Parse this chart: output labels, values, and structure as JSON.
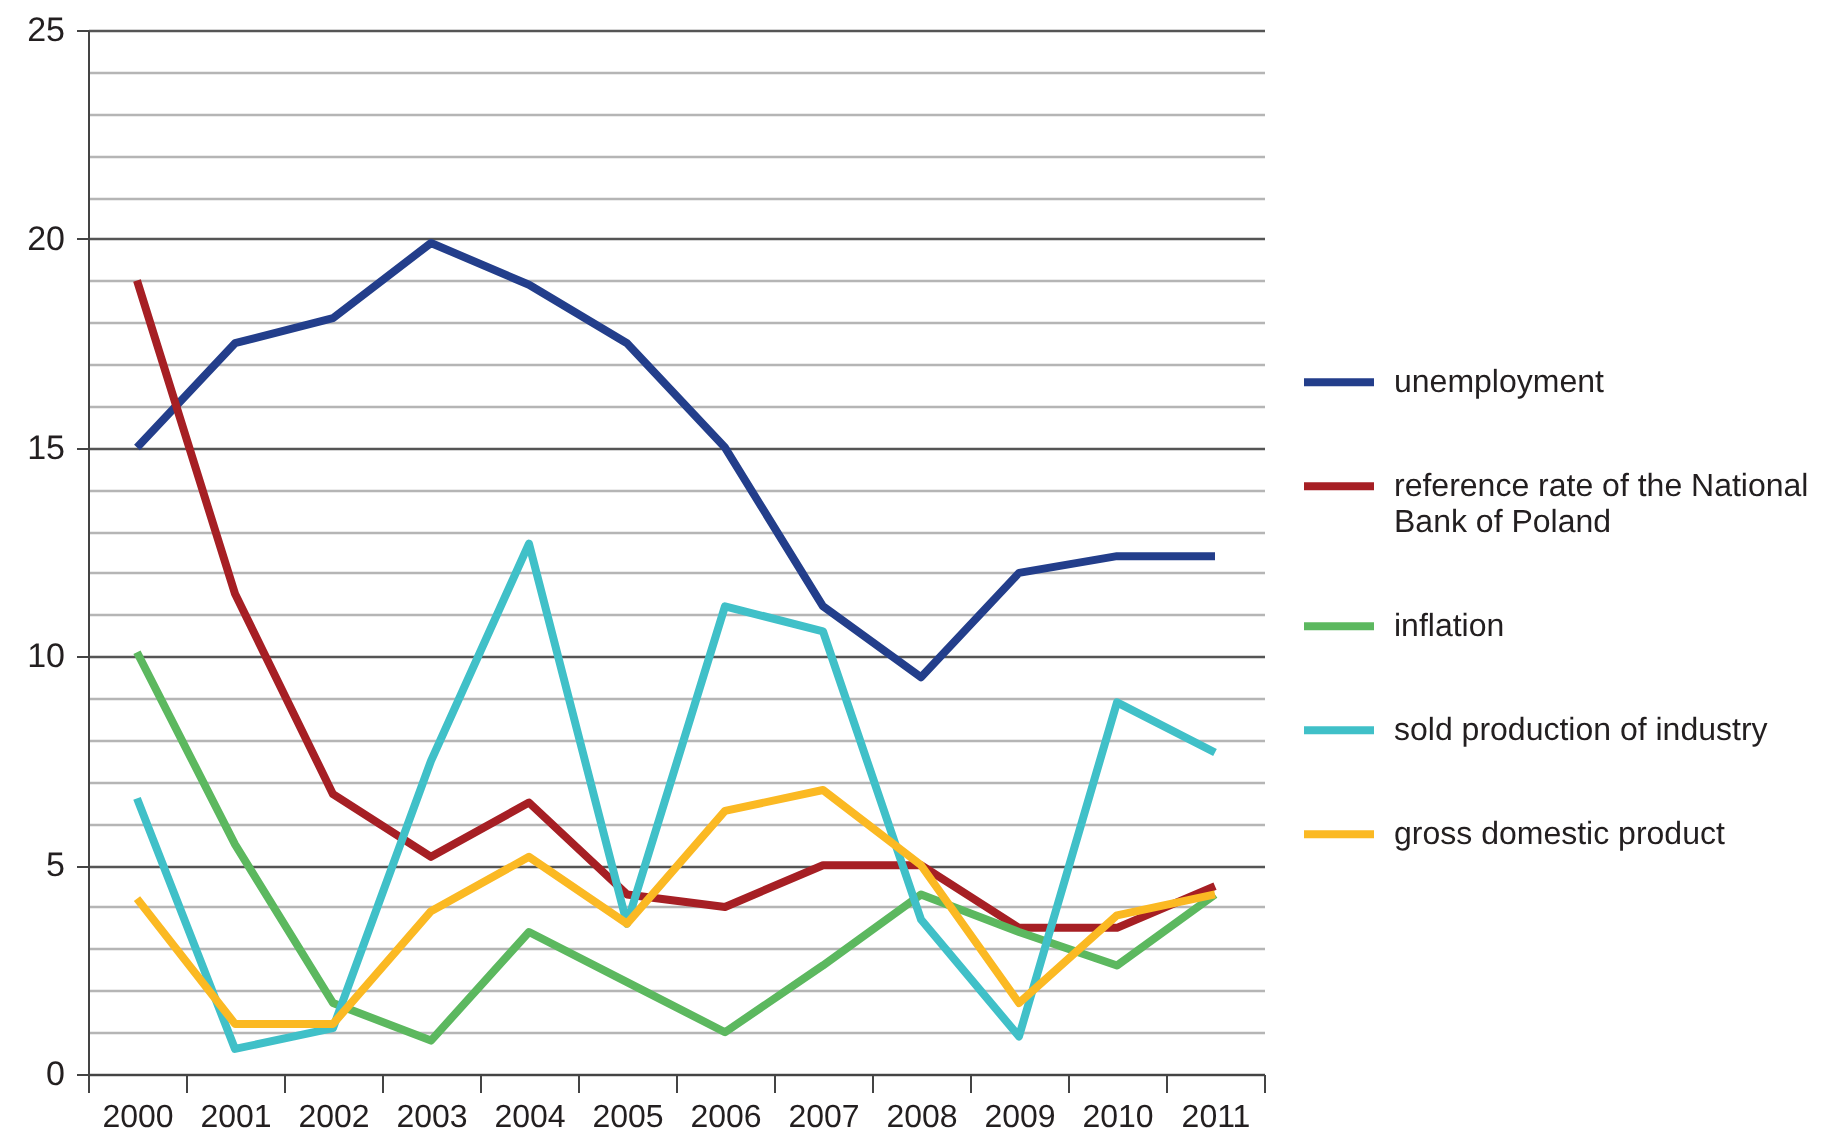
{
  "chart_data": {
    "type": "line",
    "categories": [
      "2000",
      "2001",
      "2002",
      "2003",
      "2004",
      "2005",
      "2006",
      "2007",
      "2008",
      "2009",
      "2010",
      "2011"
    ],
    "series": [
      {
        "name": "unemployment",
        "color": "#233e8b",
        "values": [
          15.0,
          17.5,
          18.1,
          19.9,
          18.9,
          17.5,
          15.0,
          11.2,
          9.5,
          12.0,
          12.4,
          12.4
        ]
      },
      {
        "name": "reference rate of the National Bank of Poland",
        "color": "#a61f24",
        "values": [
          19.0,
          11.5,
          6.7,
          5.2,
          6.5,
          4.3,
          4.0,
          5.0,
          5.0,
          3.5,
          3.5,
          4.5
        ]
      },
      {
        "name": "inflation",
        "color": "#5cb85f",
        "values": [
          10.1,
          5.5,
          1.7,
          0.8,
          3.4,
          2.2,
          1.0,
          2.6,
          4.3,
          3.4,
          2.6,
          4.3
        ]
      },
      {
        "name": "sold production of industry",
        "color": "#40c0c8",
        "values": [
          6.6,
          0.6,
          1.1,
          7.5,
          12.7,
          3.6,
          11.2,
          10.6,
          3.7,
          0.9,
          8.9,
          7.7
        ]
      },
      {
        "name": "gross domestic product",
        "color": "#fbb923",
        "values": [
          4.2,
          1.2,
          1.2,
          3.9,
          5.2,
          3.6,
          6.3,
          6.8,
          5.0,
          1.7,
          3.8,
          4.3
        ]
      }
    ],
    "ylim": [
      0,
      25
    ],
    "yticks": [
      0,
      {
        "value": 1,
        "label": null
      },
      {
        "value": 2,
        "label": null
      },
      {
        "value": 3,
        "label": null
      },
      {
        "value": 4,
        "label": null
      },
      5,
      {
        "value": 6,
        "label": null
      },
      {
        "value": 7,
        "label": null
      },
      {
        "value": 8,
        "label": null
      },
      {
        "value": 9,
        "label": null
      },
      10,
      {
        "value": 11,
        "label": null
      },
      {
        "value": 12,
        "label": null
      },
      {
        "value": 13,
        "label": null
      },
      {
        "value": 14,
        "label": null
      },
      15,
      {
        "value": 16,
        "label": null
      },
      {
        "value": 17,
        "label": null
      },
      {
        "value": 18,
        "label": null
      },
      {
        "value": 19,
        "label": null
      },
      20,
      {
        "value": 21,
        "label": null
      },
      {
        "value": 22,
        "label": null
      },
      {
        "value": 23,
        "label": null
      },
      {
        "value": 24,
        "label": null
      },
      25
    ],
    "grid": "y",
    "legend": "right",
    "line_style": "solid"
  }
}
